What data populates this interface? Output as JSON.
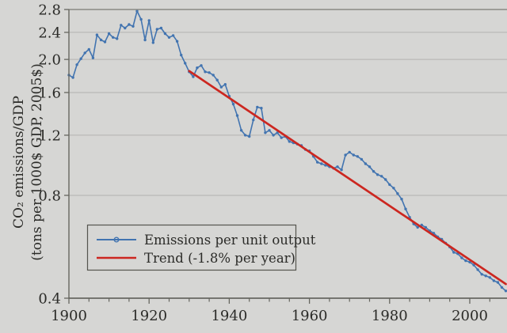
{
  "chart_data": {
    "type": "line",
    "title": "",
    "ylabel_line1": "CO₂ emissions/GDP",
    "ylabel_line2": "(tons per 1000$ GDP, 2005$)",
    "x_axis": {
      "min": 1900,
      "max": 2009,
      "major_ticks": [
        1900,
        1920,
        1940,
        1960,
        1980,
        2000
      ],
      "tick_labels": [
        "1900",
        "1920",
        "1940",
        "1960",
        "1980",
        "2000"
      ],
      "minor_tick_step": 5
    },
    "y_axis": {
      "scale": "log",
      "min": 0.4,
      "max": 2.8,
      "tick_values": [
        0.4,
        0.8,
        1.2,
        1.6,
        2.0,
        2.4,
        2.8
      ],
      "tick_labels": [
        "0.4",
        "0.8",
        "1.2",
        "1.6",
        "2.0",
        "2.4",
        "2.8"
      ]
    },
    "grid": "horizontal-only",
    "legend_position": "lower-left",
    "series": [
      {
        "name": "Emissions per unit output",
        "color": "#4274b0",
        "marker": "circle",
        "x_start": 1900,
        "values": [
          1.8,
          1.77,
          1.93,
          2.01,
          2.09,
          2.14,
          2.02,
          2.36,
          2.28,
          2.25,
          2.38,
          2.32,
          2.3,
          2.52,
          2.47,
          2.53,
          2.5,
          2.77,
          2.62,
          2.28,
          2.6,
          2.24,
          2.45,
          2.47,
          2.38,
          2.32,
          2.35,
          2.26,
          2.06,
          1.95,
          1.84,
          1.78,
          1.89,
          1.92,
          1.84,
          1.83,
          1.8,
          1.74,
          1.66,
          1.69,
          1.56,
          1.48,
          1.37,
          1.24,
          1.2,
          1.19,
          1.33,
          1.45,
          1.44,
          1.22,
          1.24,
          1.2,
          1.22,
          1.18,
          1.19,
          1.15,
          1.14,
          1.13,
          1.12,
          1.09,
          1.08,
          1.04,
          1.0,
          0.99,
          0.98,
          0.97,
          0.96,
          0.97,
          0.95,
          1.05,
          1.07,
          1.05,
          1.04,
          1.02,
          0.99,
          0.97,
          0.94,
          0.92,
          0.91,
          0.89,
          0.86,
          0.84,
          0.81,
          0.78,
          0.73,
          0.69,
          0.66,
          0.645,
          0.655,
          0.645,
          0.63,
          0.62,
          0.605,
          0.595,
          0.58,
          0.565,
          0.545,
          0.54,
          0.525,
          0.515,
          0.51,
          0.5,
          0.485,
          0.47,
          0.465,
          0.46,
          0.45,
          0.445,
          0.43,
          0.42
        ]
      },
      {
        "name": "Trend (-1.8% per year)",
        "color": "#cc2720",
        "trend": {
          "x0": 1930,
          "v0": 1.85,
          "x1": 2009,
          "v1": 0.44
        },
        "rate_percent_per_year": -1.8
      }
    ],
    "colors": {
      "background": "#d6d6d4",
      "grid": "#b3b2b0",
      "axis": "#66665f",
      "text": "#2b2b28"
    }
  }
}
